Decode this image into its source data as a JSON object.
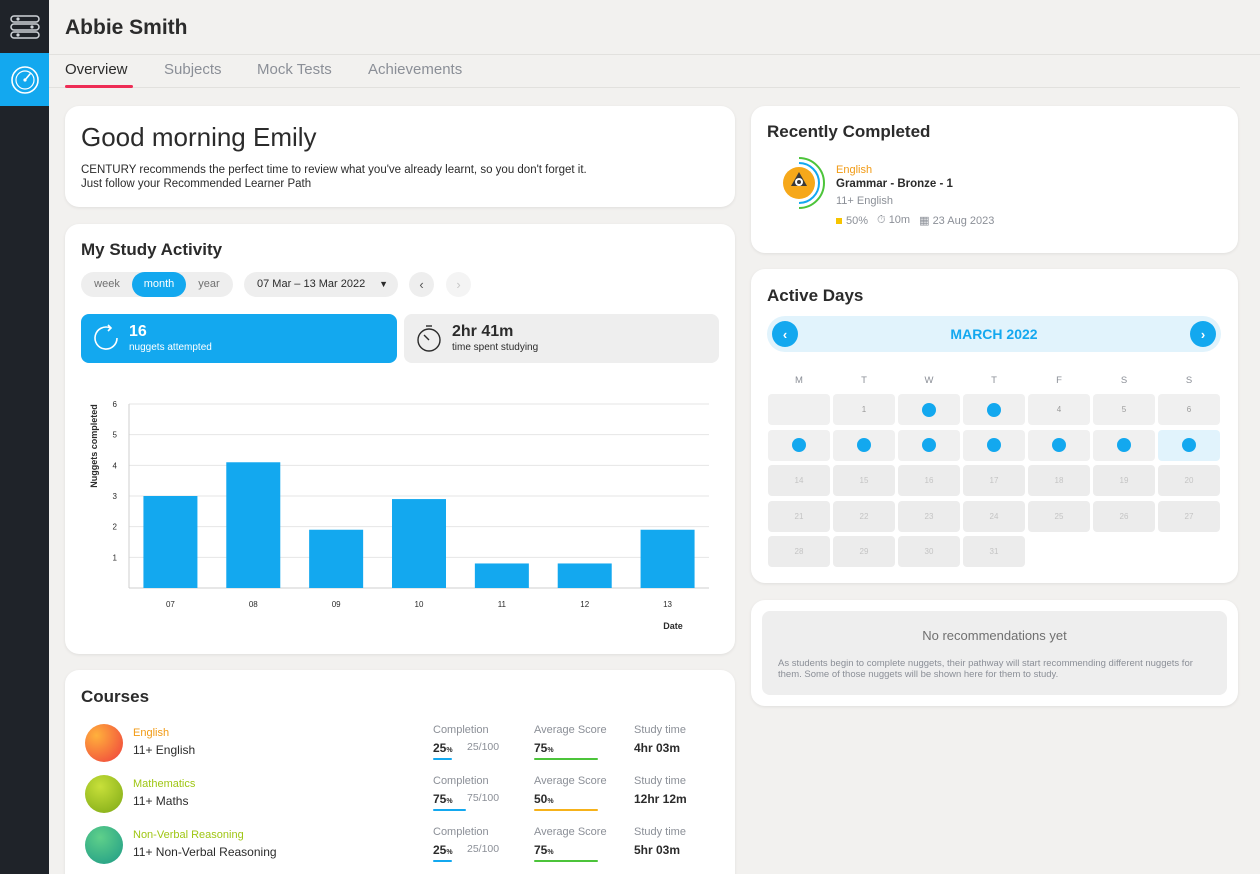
{
  "user": {
    "name": "Abbie Smith"
  },
  "tabs": [
    {
      "label": "Overview",
      "active": true
    },
    {
      "label": "Subjects"
    },
    {
      "label": "Mock Tests"
    },
    {
      "label": "Achievements"
    }
  ],
  "greeting": {
    "title": "Good morning Emily",
    "line1": "CENTURY recommends the perfect time to review what you've already learnt, so you don't forget it.",
    "line2": "Just follow your Recommended Learner Path"
  },
  "study_activity": {
    "title": "My Study Activity",
    "range_options": [
      "week",
      "month",
      "year"
    ],
    "range_selected": "month",
    "date_range": "07 Mar – 13 Mar 2022",
    "nuggets": {
      "value": "16",
      "label": "nuggets attempted"
    },
    "time": {
      "value": "2hr 41m",
      "label": "time spent studying"
    }
  },
  "chart_data": {
    "type": "bar",
    "categories": [
      "07",
      "08",
      "09",
      "10",
      "11",
      "12",
      "13"
    ],
    "values": [
      3,
      4.1,
      1.9,
      2.9,
      0.8,
      0.8,
      1.9
    ],
    "xlabel": "Date",
    "ylabel": "Nuggets completed",
    "ylim": [
      0,
      6
    ],
    "yticks": [
      1,
      2,
      3,
      4,
      5,
      6
    ],
    "grid": true,
    "bar_color": "#13a8ef"
  },
  "courses": {
    "title": "Courses",
    "metric_labels": {
      "completion": "Completion",
      "average_score": "Average Score",
      "study_time": "Study time"
    },
    "items": [
      {
        "subject": "English",
        "subject_color": "#f19a14",
        "name": "11+ English",
        "completion": "25",
        "completion_sub": "25/100",
        "completion_fraction": 0.25,
        "score": "75",
        "score_fraction": 0.75,
        "score_color": "#4cc43a",
        "study_time": "4hr 03m"
      },
      {
        "subject": "Mathematics",
        "subject_color": "#9fc613",
        "name": "11+ Maths",
        "completion": "75",
        "completion_sub": "75/100",
        "completion_fraction": 0.75,
        "score": "50",
        "score_fraction": 0.5,
        "score_color": "#f6b21a",
        "study_time": "12hr 12m"
      },
      {
        "subject": "Non-Verbal Reasoning",
        "subject_color": "#9fc613",
        "name": "11+ Non-Verbal Reasoning",
        "completion": "25",
        "completion_sub": "25/100",
        "completion_fraction": 0.25,
        "score": "75",
        "score_fraction": 0.75,
        "score_color": "#4cc43a",
        "study_time": "5hr 03m"
      }
    ],
    "percent_unit": "%"
  },
  "recently_completed": {
    "title": "Recently Completed",
    "subject": "English",
    "nugget": "Grammar - Bronze - 1",
    "course": "11+ English",
    "score": "50%",
    "duration": "10m",
    "date": "23 Aug 2023"
  },
  "active_days": {
    "title": "Active Days",
    "month": "MARCH 2022",
    "weekdays": [
      "M",
      "T",
      "W",
      "T",
      "F",
      "S",
      "S"
    ],
    "active_dates": [
      2,
      3,
      7,
      8,
      9,
      10,
      11,
      12,
      13
    ],
    "today": 13,
    "days_in_month": 31,
    "first_weekday_index": 1
  },
  "recommendations": {
    "title": "No recommendations yet",
    "text": "As students begin to complete nuggets, their pathway will start recommending different nuggets for them. Some of those nuggets will be shown here for them to study."
  }
}
